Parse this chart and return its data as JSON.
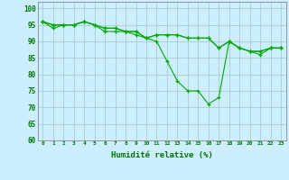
{
  "title": "",
  "xlabel": "Humidité relative (%)",
  "ylabel": "",
  "background_color": "#cceeff",
  "grid_color": "#aacccc",
  "line_color": "#00aa00",
  "marker_color": "#00aa00",
  "ylim": [
    60,
    102
  ],
  "yticks": [
    60,
    65,
    70,
    75,
    80,
    85,
    90,
    95,
    100
  ],
  "xlim": [
    -0.5,
    23.5
  ],
  "xtick_labels": [
    "0",
    "1",
    "2",
    "3",
    "4",
    "5",
    "6",
    "7",
    "8",
    "9",
    "10",
    "11",
    "12",
    "13",
    "14",
    "15",
    "16",
    "17",
    "18",
    "19",
    "20",
    "21",
    "22",
    "23"
  ],
  "series": [
    [
      96,
      94,
      95,
      95,
      96,
      95,
      93,
      93,
      93,
      92,
      91,
      92,
      92,
      92,
      91,
      91,
      91,
      88,
      90,
      88,
      87,
      87,
      88,
      88
    ],
    [
      96,
      95,
      95,
      95,
      96,
      95,
      94,
      94,
      93,
      93,
      91,
      90,
      84,
      78,
      75,
      75,
      71,
      73,
      90,
      88,
      87,
      86,
      88,
      88
    ],
    [
      96,
      95,
      95,
      95,
      96,
      95,
      94,
      94,
      93,
      93,
      91,
      92,
      92,
      92,
      91,
      91,
      91,
      88,
      90,
      88,
      87,
      87,
      88,
      88
    ]
  ]
}
